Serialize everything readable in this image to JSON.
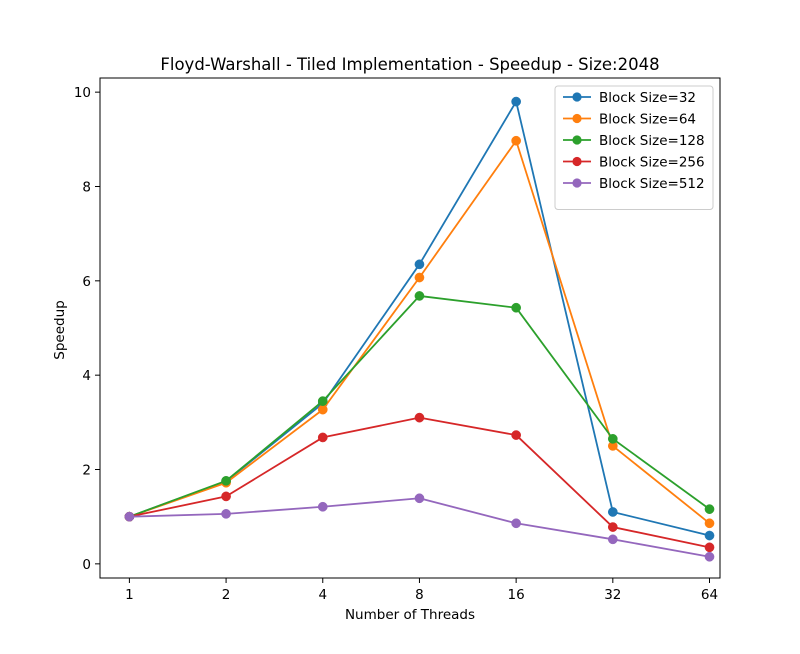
{
  "chart_data": {
    "type": "line",
    "title": "Floyd-Warshall - Tiled Implementation - Speedup - Size:2048",
    "xlabel": "Number of Threads",
    "ylabel": "Speedup",
    "x_scale": "log2",
    "x_tick_labels": [
      "1",
      "2",
      "4",
      "8",
      "16",
      "32",
      "64"
    ],
    "y_tick_labels": [
      "0",
      "2",
      "4",
      "6",
      "8",
      "10"
    ],
    "xlim": [
      0.81,
      69.0
    ],
    "ylim": [
      -0.3,
      10.3
    ],
    "grid": false,
    "legend_position": "top-right",
    "marker": "circle",
    "x": [
      1,
      2,
      4,
      8,
      16,
      32,
      64
    ],
    "series": [
      {
        "name": "Block Size=32",
        "color": "#1f77b4",
        "values": [
          1.0,
          1.75,
          3.4,
          6.35,
          9.8,
          1.1,
          0.6
        ]
      },
      {
        "name": "Block Size=64",
        "color": "#ff7f0e",
        "values": [
          1.0,
          1.72,
          3.27,
          6.07,
          8.97,
          2.5,
          0.86
        ]
      },
      {
        "name": "Block Size=128",
        "color": "#2ca02c",
        "values": [
          1.0,
          1.76,
          3.45,
          5.68,
          5.43,
          2.65,
          1.16
        ]
      },
      {
        "name": "Block Size=256",
        "color": "#d62728",
        "values": [
          1.0,
          1.43,
          2.68,
          3.1,
          2.73,
          0.78,
          0.35
        ]
      },
      {
        "name": "Block Size=512",
        "color": "#9467bd",
        "values": [
          1.0,
          1.06,
          1.21,
          1.39,
          0.86,
          0.52,
          0.15
        ]
      }
    ]
  }
}
